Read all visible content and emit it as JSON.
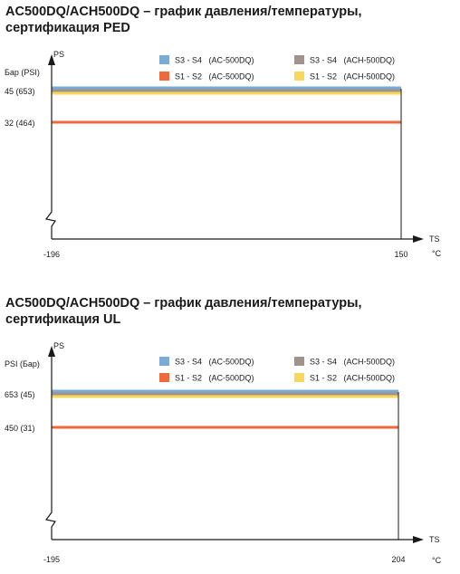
{
  "colors": {
    "s3_s4_ac": "#7aaad6",
    "s3_s4_ach": "#a1938a",
    "s1_s2_ac": "#ee6a3c",
    "s1_s2_ach": "#f8d75a",
    "axis": "#1a1a1a"
  },
  "chart_data": [
    {
      "type": "line",
      "title": [
        "AC500DQ/ACH500DQ – график давления/температуры,",
        "сертификация PED"
      ],
      "ylabel": "PS",
      "ylabel_units": "Бар  (PSI)",
      "xlabel": "TS",
      "xlabel_units": "°C",
      "x_ticks": [
        "-196",
        "150"
      ],
      "x": [
        -196,
        150
      ],
      "y_ticks": [
        "45  (653)",
        "32  (464)"
      ],
      "series": [
        {
          "name": "S3 - S4   (AC-500DQ)",
          "values": [
            45,
            45
          ],
          "color": "#7aaad6"
        },
        {
          "name": "S3 - S4   (ACH-500DQ)",
          "values": [
            45,
            45
          ],
          "color": "#a1938a"
        },
        {
          "name": "S1 - S2   (AC-500DQ)",
          "values": [
            32,
            32
          ],
          "color": "#ee6a3c"
        },
        {
          "name": "S1 - S2   (ACH-500DQ)",
          "values": [
            45,
            45
          ],
          "color": "#f8d75a"
        }
      ],
      "legend": "top-right",
      "grid": false
    },
    {
      "type": "line",
      "title": [
        "AC500DQ/ACH500DQ – график давления/температуры,",
        "сертификация UL"
      ],
      "ylabel": "PS",
      "ylabel_units": "PSI  (Бар)",
      "xlabel": "TS",
      "xlabel_units": "°C",
      "x_ticks": [
        "-195",
        "204"
      ],
      "x": [
        -195,
        204
      ],
      "y_ticks": [
        "653 (45)",
        "450 (31)"
      ],
      "series": [
        {
          "name": "S3 - S4   (AC-500DQ)",
          "values": [
            653,
            653
          ],
          "color": "#7aaad6"
        },
        {
          "name": "S3 - S4   (ACH-500DQ)",
          "values": [
            653,
            653
          ],
          "color": "#a1938a"
        },
        {
          "name": "S1 - S2   (AC-500DQ)",
          "values": [
            450,
            450
          ],
          "color": "#ee6a3c"
        },
        {
          "name": "S1 - S2   (ACH-500DQ)",
          "values": [
            653,
            653
          ],
          "color": "#f8d75a"
        }
      ],
      "legend": "top-right",
      "grid": false
    }
  ]
}
